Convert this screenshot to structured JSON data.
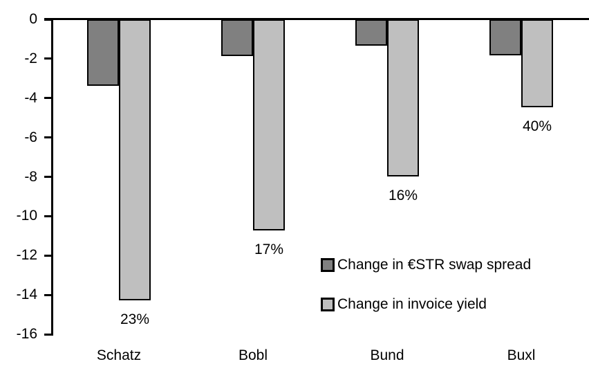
{
  "chart_data": {
    "type": "bar",
    "orientation": "vertical",
    "categories": [
      "Schatz",
      "Bobl",
      "Bund",
      "Buxl"
    ],
    "series": [
      {
        "name": "Change in €STR swap spread",
        "color": "#808080",
        "values": [
          -3.3,
          -1.8,
          -1.25,
          -1.75
        ]
      },
      {
        "name": "Change in invoice yield",
        "color": "#BFBFBF",
        "values": [
          -14.2,
          -10.65,
          -7.9,
          -4.4
        ],
        "point_labels": [
          "23%",
          "17%",
          "16%",
          "40%"
        ]
      }
    ],
    "title": "",
    "xlabel": "",
    "ylabel": "",
    "ylim": [
      -16,
      0
    ],
    "yticks": [
      0,
      -2,
      -4,
      -6,
      -8,
      -10,
      -12,
      -14,
      -16
    ],
    "grid": false,
    "legend_position": "inside-center-right",
    "bar_outline_color": "#000000",
    "axis_color": "#000000",
    "background_color": "#FFFFFF"
  }
}
